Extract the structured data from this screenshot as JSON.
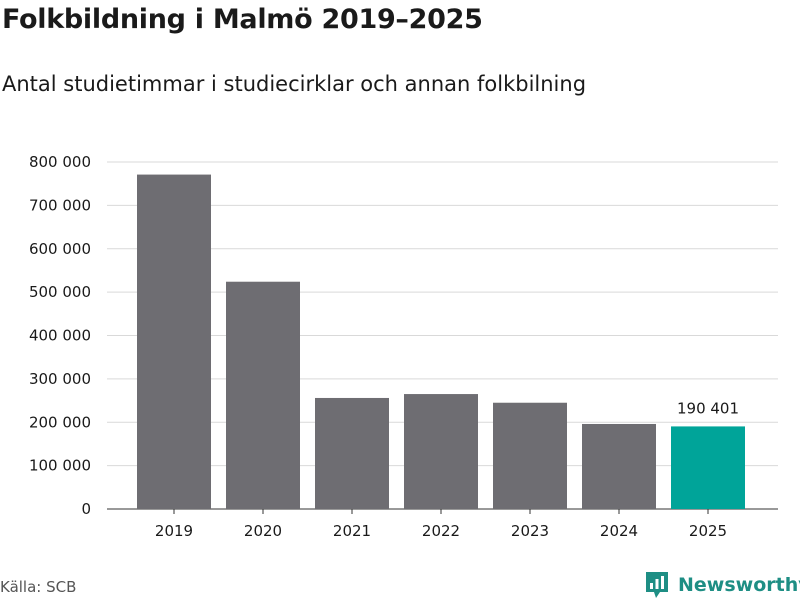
{
  "chart_data": {
    "type": "bar",
    "title": "Folkbildning i Malmö 2019–2025",
    "subtitle": "Antal studietimmar i studiecirklar och annan folkbilning",
    "categories": [
      "2019",
      "2020",
      "2021",
      "2022",
      "2023",
      "2024",
      "2025"
    ],
    "values": [
      771000,
      524000,
      256000,
      265000,
      245000,
      196000,
      190401
    ],
    "highlight_index": 6,
    "highlight_label": "190 401",
    "ylim": [
      0,
      800000
    ],
    "yticks": [
      0,
      100000,
      200000,
      300000,
      400000,
      500000,
      600000,
      700000,
      800000
    ],
    "ytick_labels": [
      "0",
      "100 000",
      "200 000",
      "300 000",
      "400 000",
      "500 000",
      "600 000",
      "700 000",
      "800 000"
    ],
    "xlabel": "",
    "ylabel": "",
    "grid": true
  },
  "colors": {
    "bar": "#6e6d72",
    "highlight": "#00a499",
    "grid": "#d9d9d9",
    "axis": "#333333",
    "brand": "#1e8e84"
  },
  "footer": {
    "source": "Källa: SCB",
    "brand": "Newsworthy"
  }
}
